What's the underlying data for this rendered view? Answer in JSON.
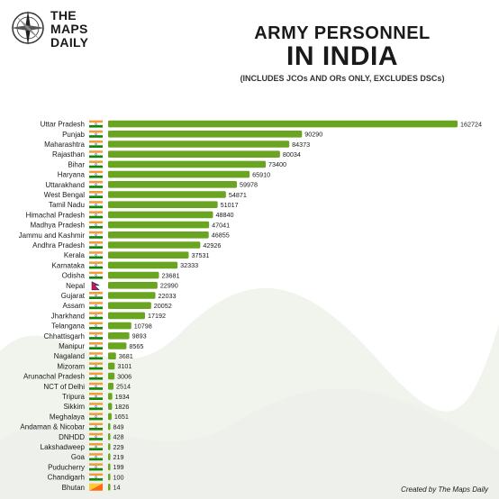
{
  "brand": {
    "logo_lines": [
      "THE",
      "MAPS",
      "DAILY"
    ]
  },
  "header": {
    "title_line1": "ARMY PERSONNEL",
    "title_line2": "IN INDIA",
    "subtitle": "(INCLUDES JCOs AND ORs ONLY, EXCLUDES DSCs)"
  },
  "footer": {
    "credit": "Created by The Maps Daily"
  },
  "colors": {
    "bar": "#6aa521",
    "saffron": "#f39c33",
    "green": "#138808",
    "nepal_red": "#dc143c",
    "nepal_blue": "#003893",
    "bhutan_yellow": "#ffcc33",
    "bhutan_orange": "#ff6a13"
  },
  "chart_data": {
    "type": "bar",
    "orientation": "horizontal",
    "categories": [
      "Uttar Pradesh",
      "Punjab",
      "Maharashtra",
      "Rajasthan",
      "Bihar",
      "Haryana",
      "Uttarakhand",
      "West Bengal",
      "Tamil Nadu",
      "Himachal Pradesh",
      "Madhya Pradesh",
      "Jammu and Kashmir",
      "Andhra Pradesh",
      "Kerala",
      "Karnataka",
      "Odisha",
      "Nepal",
      "Gujarat",
      "Assam",
      "Jharkhand",
      "Telangana",
      "Chhattisgarh",
      "Manipur",
      "Nagaland",
      "Mizoram",
      "Arunachal Pradesh",
      "NCT of Delhi",
      "Tripura",
      "Sikkim",
      "Meghalaya",
      "Andaman & Nicobar",
      "DNHDD",
      "Lakshadweep",
      "Goa",
      "Puducherry",
      "Chandigarh",
      "Bhutan"
    ],
    "values": [
      162724,
      90290,
      84373,
      80034,
      73400,
      65910,
      59978,
      54871,
      51017,
      48840,
      47041,
      46855,
      42926,
      37531,
      32333,
      23681,
      22990,
      22033,
      20052,
      17192,
      10798,
      9893,
      8565,
      3681,
      3101,
      3006,
      2514,
      1934,
      1826,
      1651,
      849,
      428,
      229,
      219,
      199,
      100,
      14
    ],
    "flags": [
      "india",
      "india",
      "india",
      "india",
      "india",
      "india",
      "india",
      "india",
      "india",
      "india",
      "india",
      "india",
      "india",
      "india",
      "india",
      "india",
      "nepal",
      "india",
      "india",
      "india",
      "india",
      "india",
      "india",
      "india",
      "india",
      "india",
      "india",
      "india",
      "india",
      "india",
      "india",
      "india",
      "india",
      "india",
      "india",
      "india",
      "bhutan"
    ],
    "xlim": [
      0,
      162724
    ],
    "grid": false,
    "legend": "none"
  }
}
